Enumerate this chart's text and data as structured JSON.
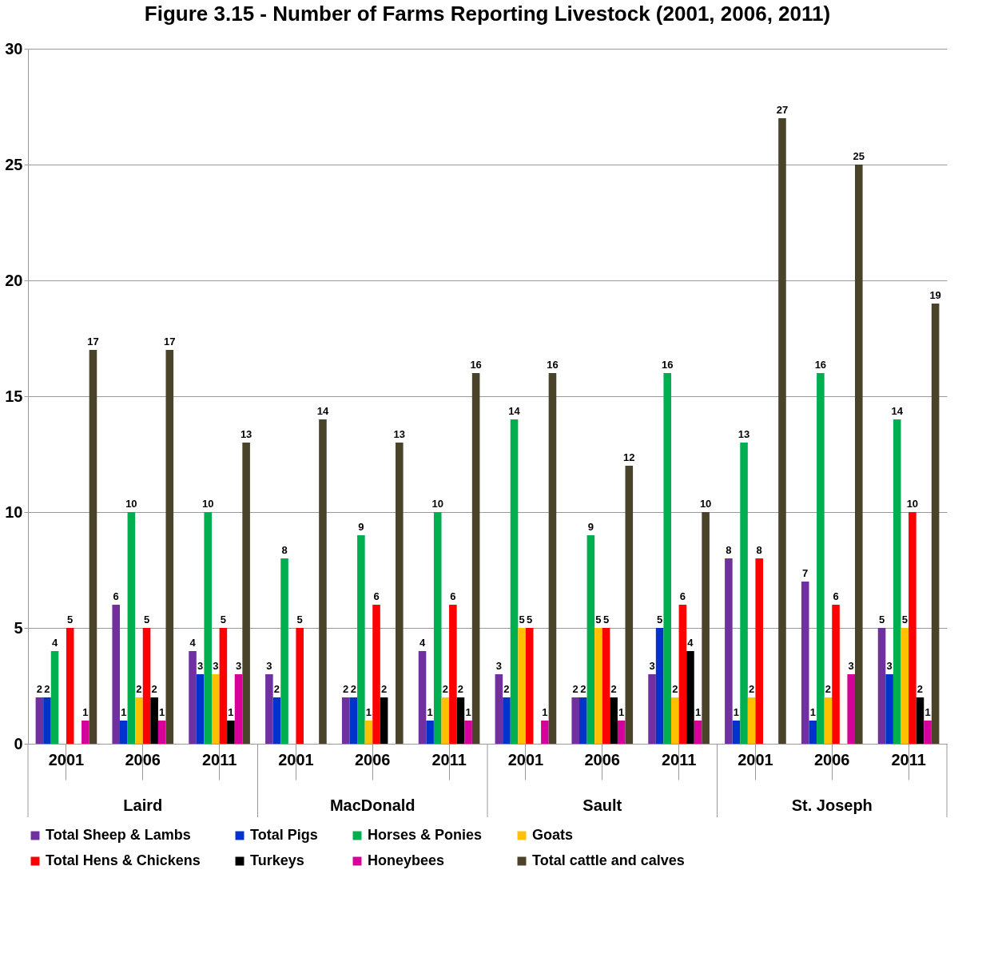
{
  "chart_data": {
    "type": "bar",
    "title": "Figure 3.15 - Number of Farms Reporting Livestock (2001, 2006, 2011)",
    "categories": [
      "2001",
      "2006",
      "2011",
      "2001",
      "2006",
      "2011",
      "2001",
      "2006",
      "2011",
      "2001",
      "2006",
      "2011"
    ],
    "annotations": [
      "Laird",
      "MacDonald",
      "Sault",
      "St. Joseph"
    ],
    "series": [
      {
        "name": "Total Sheep & Lambs",
        "color": "#7030a0",
        "values": [
          2,
          6,
          4,
          3,
          2,
          4,
          3,
          2,
          3,
          8,
          7,
          5
        ]
      },
      {
        "name": "Total Pigs",
        "color": "#0033cc",
        "values": [
          2,
          1,
          3,
          2,
          2,
          1,
          2,
          2,
          5,
          1,
          1,
          3
        ]
      },
      {
        "name": "Horses & Ponies",
        "color": "#00b050",
        "values": [
          4,
          10,
          10,
          8,
          9,
          10,
          14,
          9,
          16,
          13,
          16,
          14
        ]
      },
      {
        "name": "Goats",
        "color": "#ffc000",
        "values": [
          null,
          2,
          3,
          null,
          1,
          2,
          5,
          5,
          2,
          2,
          2,
          5
        ]
      },
      {
        "name": "Total Hens & Chickens",
        "color": "#ff0000",
        "values": [
          5,
          5,
          5,
          5,
          6,
          6,
          5,
          5,
          6,
          8,
          6,
          10
        ]
      },
      {
        "name": "Turkeys",
        "color": "#000000",
        "values": [
          null,
          2,
          1,
          null,
          2,
          2,
          null,
          2,
          4,
          null,
          null,
          2
        ]
      },
      {
        "name": "Honeybees",
        "color": "#d6009b",
        "values": [
          1,
          1,
          3,
          null,
          null,
          1,
          1,
          1,
          1,
          null,
          3,
          1
        ]
      },
      {
        "name": "Total cattle and calves",
        "color": "#4a432a",
        "values": [
          17,
          17,
          13,
          14,
          13,
          16,
          16,
          12,
          10,
          27,
          25,
          19
        ]
      }
    ],
    "ylim": [
      0,
      30
    ],
    "yticks": [
      0,
      5,
      10,
      15,
      20,
      25,
      30
    ],
    "grid": "y",
    "legend": "bottom",
    "data_labels": true
  }
}
